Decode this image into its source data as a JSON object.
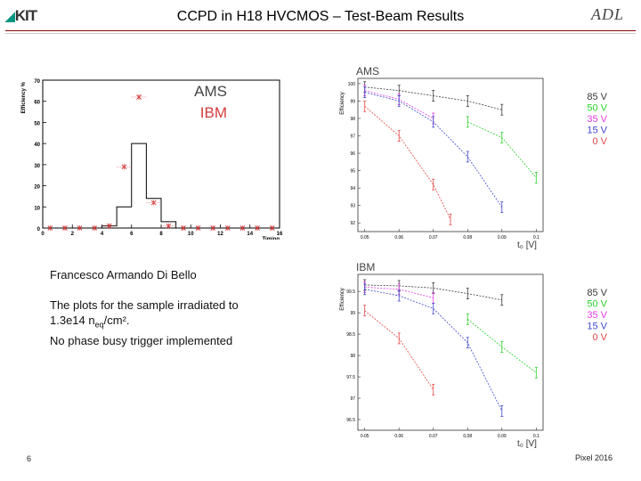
{
  "header": {
    "title": "CCPD in H18 HVCMOS – Test-Beam Results",
    "kit_logo": "KIT",
    "adl_logo": "ADL"
  },
  "text": {
    "author": "Francesco Armando Di Bello",
    "desc_line1": "The plots for the sample irradiated to",
    "desc_line2_prefix": "1.3e14 n",
    "desc_line2_sub": "eq",
    "desc_line2_suffix": "/cm².",
    "desc_line3": "No phase busy trigger implemented"
  },
  "footer": {
    "page_number": "6",
    "event": "Pixel 2016"
  },
  "colors": {
    "header_line": "#8a0a0a",
    "ams": "#000000",
    "ibm": "#d63b3b",
    "v85": "#3a3a3a",
    "v50": "#2bd12b",
    "v35": "#e23be2",
    "v15": "#3f49c9",
    "v0": "#e34646"
  },
  "chart_data": [
    {
      "type": "histogram",
      "xlabel": "Timing",
      "ylabel": "Efficiency %",
      "xlim": [
        0,
        16
      ],
      "ylim": [
        0,
        70
      ],
      "xticks": [
        0,
        2,
        4,
        6,
        8,
        10,
        12,
        14,
        16
      ],
      "yticks": [
        0,
        10,
        20,
        30,
        40,
        50,
        60,
        70
      ],
      "legend": [
        "AMS",
        "IBM"
      ],
      "bin_edges": [
        0,
        1,
        2,
        3,
        4,
        5,
        6,
        7,
        8,
        9,
        10,
        11,
        12,
        13,
        14,
        15,
        16
      ],
      "series": [
        {
          "name": "AMS",
          "style": "step",
          "values": [
            0,
            0,
            0,
            0,
            1,
            10,
            40,
            14,
            3,
            0,
            0,
            0,
            0,
            0,
            0,
            0
          ]
        },
        {
          "name": "IBM",
          "style": "markers",
          "values": [
            0,
            0,
            0,
            0,
            1,
            29,
            62,
            12,
            1,
            0,
            0,
            0,
            0,
            0,
            0,
            0
          ]
        }
      ]
    },
    {
      "type": "line",
      "title": "AMS",
      "ylabel": "Efficiency",
      "xlabel": "t₀ [V]",
      "xlim": [
        0.048,
        0.102
      ],
      "ylim": [
        91.5,
        100.3
      ],
      "xticks": [
        0.05,
        0.06,
        0.07,
        0.08,
        0.09,
        0.1
      ],
      "xtick_labels": [
        "0.05",
        "0.06",
        "0.07",
        "0.08",
        "0.09",
        "0.1"
      ],
      "yticks": [
        92,
        93,
        94,
        95,
        96,
        97,
        98,
        99,
        100
      ],
      "legend": [
        "85 V",
        "50 V",
        "35 V",
        "15 V",
        "0 V"
      ],
      "series": [
        {
          "name": "85 V",
          "x": [
            0.05,
            0.06,
            0.07,
            0.08,
            0.09
          ],
          "y": [
            99.8,
            99.6,
            99.3,
            99.0,
            98.5
          ]
        },
        {
          "name": "50 V",
          "x": [
            0.08,
            0.09,
            0.1
          ],
          "y": [
            97.8,
            96.9,
            94.6
          ]
        },
        {
          "name": "35 V",
          "x": [
            0.05,
            0.06,
            0.07
          ],
          "y": [
            99.6,
            99.1,
            98.0
          ]
        },
        {
          "name": "15 V",
          "x": [
            0.05,
            0.06,
            0.07,
            0.08,
            0.09
          ],
          "y": [
            99.5,
            99.0,
            97.8,
            95.8,
            92.9
          ]
        },
        {
          "name": "0 V",
          "x": [
            0.05,
            0.06,
            0.07,
            0.075
          ],
          "y": [
            98.7,
            97.0,
            94.2,
            92.2
          ]
        }
      ]
    },
    {
      "type": "line",
      "title": "IBM",
      "ylabel": "Efficiency",
      "xlabel": "t₀ [V]",
      "xlim": [
        0.048,
        0.102
      ],
      "ylim": [
        96.25,
        99.9
      ],
      "xticks": [
        0.05,
        0.06,
        0.07,
        0.08,
        0.09,
        0.1
      ],
      "xtick_labels": [
        "0.05",
        "0.06",
        "0.07",
        "0.08",
        "0.09",
        "0.1"
      ],
      "yticks": [
        96.5,
        97,
        97.5,
        98,
        98.5,
        99,
        99.5
      ],
      "legend": [
        "85 V",
        "50 V",
        "35 V",
        "15 V",
        "0 V"
      ],
      "series": [
        {
          "name": "85 V",
          "x": [
            0.05,
            0.06,
            0.07,
            0.08,
            0.09
          ],
          "y": [
            99.65,
            99.63,
            99.58,
            99.45,
            99.3
          ]
        },
        {
          "name": "50 V",
          "x": [
            0.08,
            0.09,
            0.1
          ],
          "y": [
            98.85,
            98.2,
            97.6
          ]
        },
        {
          "name": "35 V",
          "x": [
            0.05,
            0.06,
            0.07
          ],
          "y": [
            99.6,
            99.55,
            99.35
          ]
        },
        {
          "name": "15 V",
          "x": [
            0.05,
            0.06,
            0.07,
            0.08,
            0.09
          ],
          "y": [
            99.55,
            99.4,
            99.1,
            98.3,
            96.7
          ]
        },
        {
          "name": "0 V",
          "x": [
            0.05,
            0.06,
            0.07
          ],
          "y": [
            99.05,
            98.4,
            97.2
          ]
        }
      ]
    }
  ]
}
